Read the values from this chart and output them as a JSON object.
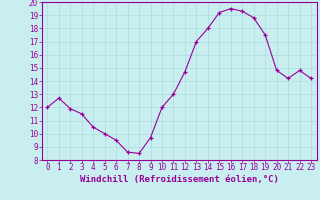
{
  "hours": [
    0,
    1,
    2,
    3,
    4,
    5,
    6,
    7,
    8,
    9,
    10,
    11,
    12,
    13,
    14,
    15,
    16,
    17,
    18,
    19,
    20,
    21,
    22,
    23
  ],
  "values": [
    12.0,
    12.7,
    11.9,
    11.5,
    10.5,
    10.0,
    9.5,
    8.6,
    8.5,
    9.7,
    12.0,
    13.0,
    14.7,
    17.0,
    18.0,
    19.2,
    19.5,
    19.3,
    18.8,
    17.5,
    14.8,
    14.2,
    14.8,
    14.2
  ],
  "line_color": "#990099",
  "marker": "+",
  "bg_color": "#c8eef0",
  "grid_color": "#aadddd",
  "axis_color": "#990099",
  "xlabel": "Windchill (Refroidissement éolien,°C)",
  "ylim": [
    8,
    20
  ],
  "xlim": [
    -0.5,
    23.5
  ],
  "yticks": [
    8,
    9,
    10,
    11,
    12,
    13,
    14,
    15,
    16,
    17,
    18,
    19,
    20
  ],
  "xticks": [
    0,
    1,
    2,
    3,
    4,
    5,
    6,
    7,
    8,
    9,
    10,
    11,
    12,
    13,
    14,
    15,
    16,
    17,
    18,
    19,
    20,
    21,
    22,
    23
  ],
  "label_fontsize": 6.5,
  "tick_fontsize": 5.5
}
